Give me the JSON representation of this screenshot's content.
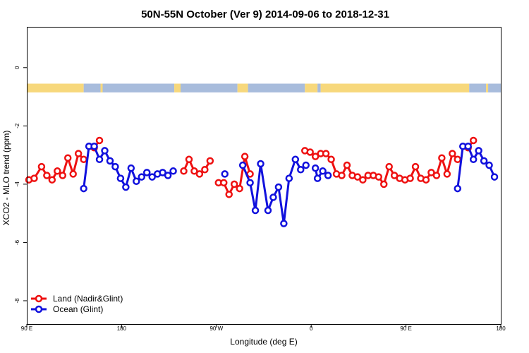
{
  "chart_data": {
    "type": "line",
    "title": "50N-55N October (Ver 9)   2014-09-06 to 2018-12-31",
    "xlabel": "Longitude (deg E)",
    "ylabel": "XCO2 - MLO trend (ppm)",
    "x_ticks": [
      {
        "value": 90,
        "label": "90 E"
      },
      {
        "value": 180,
        "label": "180"
      },
      {
        "value": 270,
        "label": "90 W"
      },
      {
        "value": 360,
        "label": "0"
      },
      {
        "value": 450,
        "label": "90 E"
      },
      {
        "value": 540,
        "label": "180"
      }
    ],
    "y_ticks": [
      {
        "value": 0,
        "label": "0"
      },
      {
        "value": -2,
        "label": "-2"
      },
      {
        "value": -4,
        "label": "-4"
      },
      {
        "value": -6,
        "label": "-6"
      },
      {
        "value": -8,
        "label": "-8"
      }
    ],
    "xlim": [
      90,
      540
    ],
    "ylim": [
      -8.8,
      1.4
    ],
    "grid": false,
    "legend_position": "bottom-left",
    "surface_band": {
      "y_range": [
        -0.55,
        -0.85
      ],
      "land_color": "#f7d87c",
      "ocean_color": "#a8bcdc",
      "segments": [
        {
          "type": "land",
          "from": 90,
          "to": 144
        },
        {
          "type": "ocean",
          "from": 144,
          "to": 160
        },
        {
          "type": "land",
          "from": 160,
          "to": 162
        },
        {
          "type": "ocean",
          "from": 162,
          "to": 230
        },
        {
          "type": "land",
          "from": 230,
          "to": 236
        },
        {
          "type": "ocean",
          "from": 236,
          "to": 290
        },
        {
          "type": "land",
          "from": 290,
          "to": 300
        },
        {
          "type": "ocean",
          "from": 300,
          "to": 354
        },
        {
          "type": "land",
          "from": 354,
          "to": 366
        },
        {
          "type": "ocean",
          "from": 366,
          "to": 369
        },
        {
          "type": "land",
          "from": 369,
          "to": 510
        },
        {
          "type": "ocean",
          "from": 510,
          "to": 526
        },
        {
          "type": "land",
          "from": 526,
          "to": 528
        },
        {
          "type": "ocean",
          "from": 528,
          "to": 540
        }
      ]
    },
    "series": [
      {
        "name": "Land (Nadir&Glint)",
        "color": "#ee1111",
        "segments": [
          [
            [
              92,
              -3.85
            ],
            [
              97,
              -3.8
            ],
            [
              104,
              -3.4
            ],
            [
              109,
              -3.7
            ],
            [
              114,
              -3.85
            ],
            [
              119,
              -3.55
            ],
            [
              124,
              -3.7
            ],
            [
              129,
              -3.1
            ],
            [
              134,
              -3.65
            ],
            [
              139,
              -2.95
            ],
            [
              144,
              -3.15
            ]
          ],
          [
            [
              154,
              -2.75
            ],
            [
              159,
              -2.5
            ]
          ],
          [
            [
              239,
              -3.55
            ],
            [
              244,
              -3.15
            ],
            [
              249,
              -3.55
            ],
            [
              254,
              -3.65
            ],
            [
              259,
              -3.5
            ],
            [
              264,
              -3.2
            ]
          ],
          [
            [
              272,
              -3.95
            ],
            [
              277,
              -3.95
            ],
            [
              282,
              -4.35
            ],
            [
              287,
              -4.0
            ],
            [
              292,
              -4.15
            ],
            [
              297,
              -3.05
            ],
            [
              302,
              -3.65
            ]
          ],
          [
            [
              354,
              -2.85
            ],
            [
              359,
              -2.9
            ],
            [
              364,
              -3.05
            ],
            [
              369,
              -2.95
            ],
            [
              374,
              -2.95
            ],
            [
              379,
              -3.15
            ],
            [
              384,
              -3.65
            ],
            [
              389,
              -3.7
            ],
            [
              394,
              -3.35
            ],
            [
              399,
              -3.7
            ],
            [
              404,
              -3.75
            ],
            [
              409,
              -3.85
            ],
            [
              414,
              -3.7
            ],
            [
              419,
              -3.7
            ],
            [
              424,
              -3.75
            ],
            [
              429,
              -4.0
            ],
            [
              434,
              -3.4
            ],
            [
              439,
              -3.7
            ],
            [
              444,
              -3.8
            ],
            [
              449,
              -3.85
            ],
            [
              454,
              -3.8
            ],
            [
              459,
              -3.4
            ],
            [
              464,
              -3.8
            ],
            [
              469,
              -3.85
            ],
            [
              474,
              -3.6
            ],
            [
              479,
              -3.7
            ],
            [
              484,
              -3.1
            ],
            [
              489,
              -3.65
            ],
            [
              494,
              -2.95
            ],
            [
              499,
              -3.15
            ]
          ],
          [
            [
              509,
              -2.75
            ],
            [
              514,
              -2.5
            ]
          ]
        ]
      },
      {
        "name": "Ocean (Glint)",
        "color": "#1111dd",
        "segments": [
          [
            [
              144,
              -4.15
            ],
            [
              149,
              -2.7
            ],
            [
              154,
              -2.7
            ],
            [
              159,
              -3.15
            ],
            [
              164,
              -2.85
            ],
            [
              169,
              -3.2
            ],
            [
              174,
              -3.4
            ],
            [
              179,
              -3.8
            ],
            [
              184,
              -4.1
            ],
            [
              189,
              -3.45
            ],
            [
              194,
              -3.9
            ],
            [
              199,
              -3.75
            ],
            [
              204,
              -3.6
            ],
            [
              209,
              -3.75
            ],
            [
              214,
              -3.65
            ],
            [
              219,
              -3.6
            ],
            [
              224,
              -3.7
            ],
            [
              229,
              -3.55
            ]
          ],
          [
            [
              278,
              -3.65
            ]
          ],
          [
            [
              295,
              -3.35
            ],
            [
              302,
              -3.95
            ],
            [
              307,
              -4.9
            ],
            [
              312,
              -3.3
            ],
            [
              319,
              -4.9
            ],
            [
              324,
              -4.45
            ],
            [
              329,
              -4.1
            ],
            [
              334,
              -5.35
            ],
            [
              339,
              -3.8
            ],
            [
              345,
              -3.15
            ],
            [
              350,
              -3.5
            ],
            [
              355,
              -3.35
            ]
          ],
          [
            [
              364,
              -3.45
            ],
            [
              366,
              -3.8
            ],
            [
              371,
              -3.55
            ],
            [
              376,
              -3.7
            ]
          ],
          [
            [
              499,
              -4.15
            ],
            [
              504,
              -2.7
            ],
            [
              509,
              -2.7
            ],
            [
              514,
              -3.15
            ],
            [
              519,
              -2.85
            ],
            [
              524,
              -3.2
            ],
            [
              529,
              -3.35
            ],
            [
              534,
              -3.75
            ]
          ]
        ]
      }
    ]
  }
}
